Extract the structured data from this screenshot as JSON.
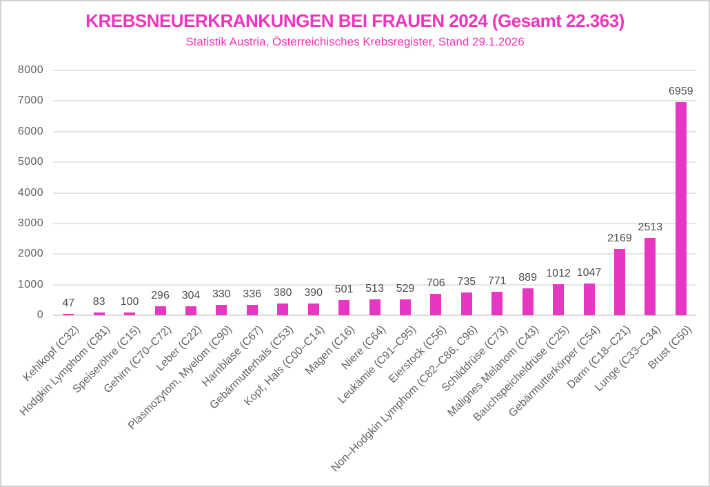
{
  "chart_data": {
    "type": "bar",
    "title": "KREBSNEUERKRANKUNGEN BEI FRAUEN 2024 (Gesamt 22.363)",
    "subtitle": "Statistik Austria, Österreichisches Krebsregister, Stand 29.1.2026",
    "categories": [
      "Kehlkopf (C32)",
      "Hodgkin Lymphom (C81)",
      "Speiseröhre (C15)",
      "Gehirn (C70–C72)",
      "Leber (C22)",
      "Plasmozytom, Myelom (C90)",
      "Harnblase (C67)",
      "Gebärmutterhals (C53)",
      "Kopf, Hals (C00–C14)",
      "Magen (C16)",
      "Niere (C64)",
      "Leukämie (C91–C95)",
      "Eierstock (C56)",
      "Non–Hodgkin Lymphom (C82–C86, C96)",
      "Schilddrüse (C73)",
      "Malignes Melanom (C43)",
      "Bauchspeicheldrüse (C25)",
      "Gebärmutterkörper (C54)",
      "Darm (C18–C21)",
      "Lunge (C33–C34)",
      "Brust (C50)"
    ],
    "values": [
      47,
      83,
      100,
      296,
      304,
      330,
      336,
      380,
      390,
      501,
      513,
      529,
      706,
      735,
      771,
      889,
      1012,
      1047,
      2169,
      2513,
      6959
    ],
    "xlabel": "",
    "ylabel": "",
    "ylim": [
      0,
      8000
    ],
    "ytick_step": 1000,
    "ytick_labels": [
      "0",
      "1000",
      "2000",
      "3000",
      "4000",
      "5000",
      "6000",
      "7000",
      "8000"
    ],
    "grid": true,
    "legend_position": "none",
    "value_labels_shown": true,
    "x_label_rotation_deg": 45,
    "colors": {
      "bar": "#E637C3",
      "title": "#EE35BC",
      "axis_text": "#636363",
      "value_label": "#4D4D4D",
      "gridline": "#E4E4E4",
      "gridline_zero": "#DADADA",
      "border": "#D2D2D2",
      "background": "#FFFFFF"
    }
  }
}
